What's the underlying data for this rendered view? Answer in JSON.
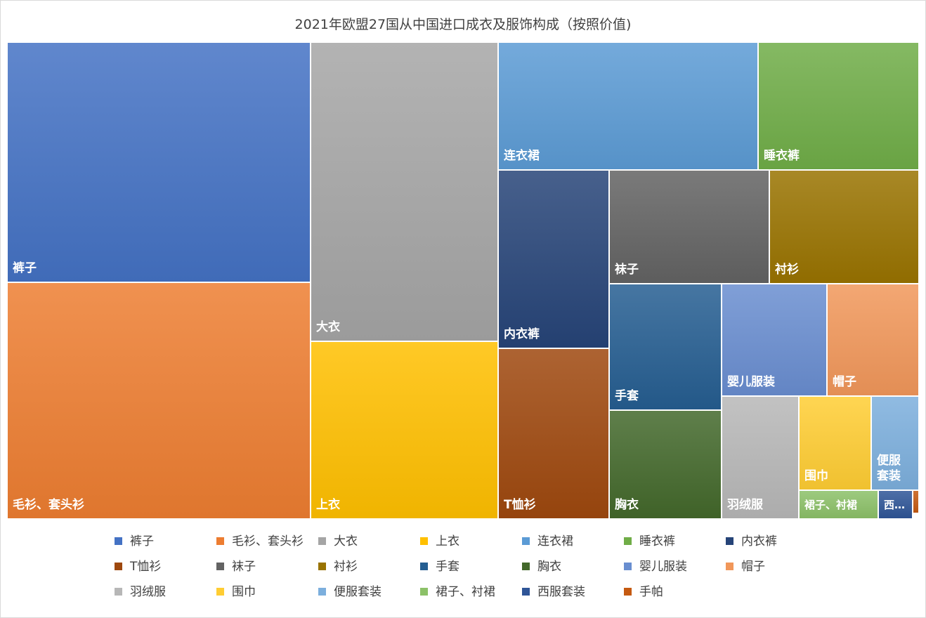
{
  "chart_data": {
    "type": "treemap",
    "title": "2021年欧盟27国从中国进口成衣及服饰构成（按照价值)",
    "legend_position": "bottom",
    "unit": "relative share (estimated from tile area, %)",
    "items": [
      {
        "name": "裤子",
        "value": 14.8,
        "color": "#4472C4"
      },
      {
        "name": "毛衫、套头衫",
        "value": 14.4,
        "color": "#ED7D31"
      },
      {
        "name": "大衣",
        "value": 12.7,
        "color": "#A5A5A5"
      },
      {
        "name": "上衣",
        "value": 7.6,
        "color": "#FFC000"
      },
      {
        "name": "连衣裙",
        "value": 7.5,
        "color": "#5B9BD5"
      },
      {
        "name": "睡衣裤",
        "value": 3.0,
        "color": "#70AD47"
      },
      {
        "name": "内衣裤",
        "value": 3.4,
        "color": "#264478"
      },
      {
        "name": "T恤衫",
        "value": 3.4,
        "color": "#9E480E"
      },
      {
        "name": "袜子",
        "value": 3.2,
        "color": "#636363"
      },
      {
        "name": "衬衫",
        "value": 2.3,
        "color": "#997300"
      },
      {
        "name": "手套",
        "value": 2.2,
        "color": "#255E91"
      },
      {
        "name": "胸衣",
        "value": 2.4,
        "color": "#43682B"
      },
      {
        "name": "婴儿服装",
        "value": 1.9,
        "color": "#698ED0"
      },
      {
        "name": "帽子",
        "value": 1.8,
        "color": "#F1975A"
      },
      {
        "name": "羽绒服",
        "value": 1.5,
        "color": "#B7B7B7"
      },
      {
        "name": "围巾",
        "value": 1.1,
        "color": "#FFCD33"
      },
      {
        "name": "便服套装",
        "value": 0.7,
        "color": "#7CAFDD"
      },
      {
        "name": "裙子、衬裙",
        "value": 0.4,
        "color": "#8CC168"
      },
      {
        "name": "西服套装",
        "value": 0.15,
        "color": "#2F5597"
      },
      {
        "name": "手帕",
        "value": 0.02,
        "color": "#C55A11"
      }
    ],
    "tile_labels": {
      "西服套装": "西…",
      "便服套装": "便服\n套装"
    }
  }
}
